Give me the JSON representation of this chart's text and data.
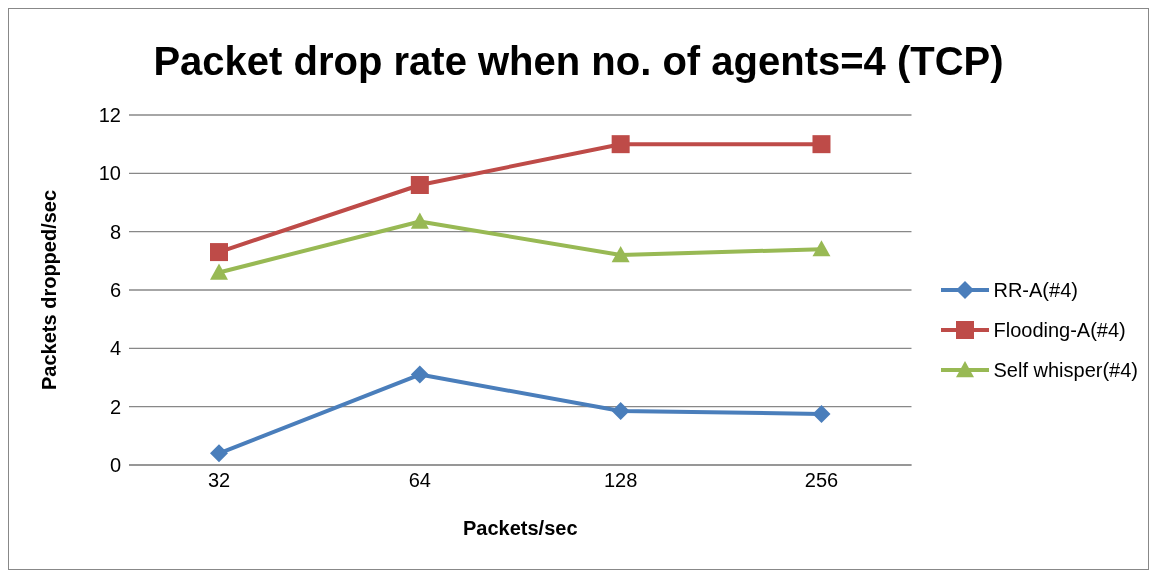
{
  "chart_data": {
    "type": "line",
    "title": "Packet drop rate when no. of agents=4 (TCP)",
    "xlabel": "Packets/sec",
    "ylabel": "Packets dropped/sec",
    "categories": [
      "32",
      "64",
      "128",
      "256"
    ],
    "series": [
      {
        "name": "RR-A(#4)",
        "color": "#4a7ebb",
        "marker": "diamond",
        "values": [
          0.4,
          3.1,
          1.85,
          1.75
        ]
      },
      {
        "name": "Flooding-A(#4)",
        "color": "#be4b48",
        "marker": "square",
        "values": [
          7.3,
          9.6,
          11.0,
          11.0
        ]
      },
      {
        "name": "Self whisper(#4)",
        "color": "#98b954",
        "marker": "triangle",
        "values": [
          6.6,
          8.35,
          7.2,
          7.4
        ]
      }
    ],
    "ylim": [
      0,
      12
    ],
    "yticks": [
      0,
      2,
      4,
      6,
      8,
      10,
      12
    ],
    "grid": "y",
    "legend": "right"
  }
}
